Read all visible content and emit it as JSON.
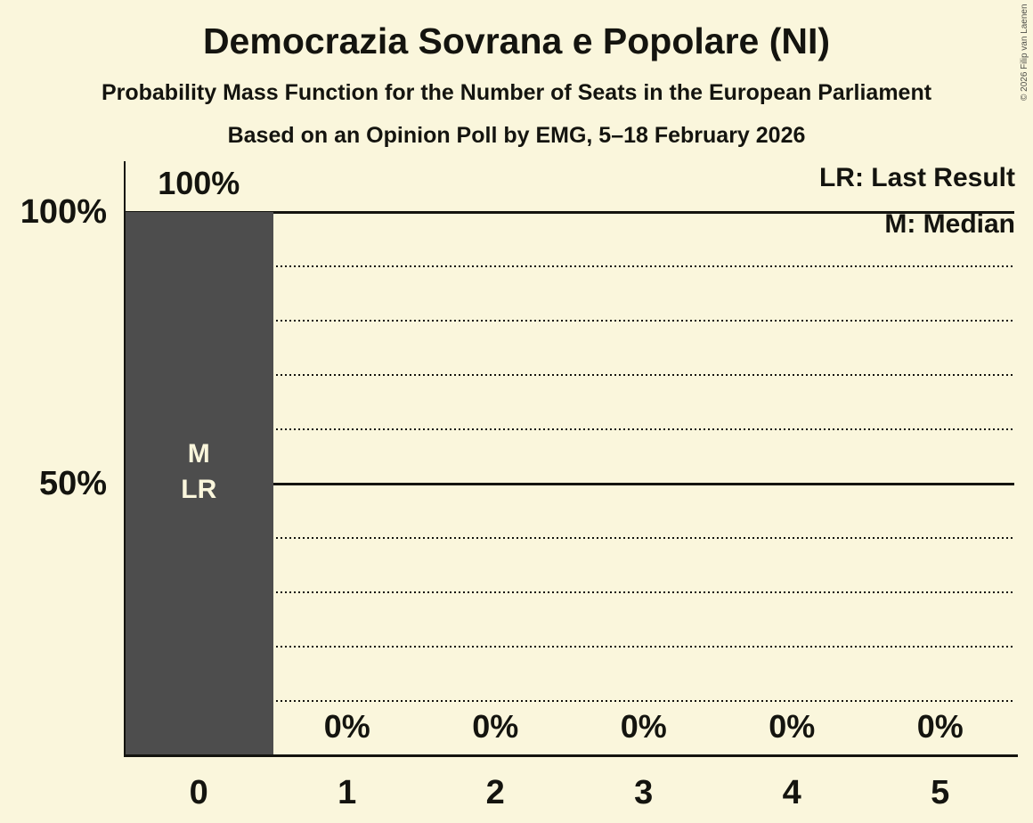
{
  "chart_data": {
    "type": "bar",
    "title": "Democrazia Sovrana e Popolare (NI)",
    "subtitle": "Probability Mass Function for the Number of Seats in the European Parliament",
    "source": "Based on an Opinion Poll by EMG, 5–18 February 2026",
    "categories": [
      "0",
      "1",
      "2",
      "3",
      "4",
      "5"
    ],
    "values": [
      100,
      0,
      0,
      0,
      0,
      0
    ],
    "value_labels": [
      "100%",
      "0%",
      "0%",
      "0%",
      "0%",
      "0%"
    ],
    "ylim": [
      0,
      100
    ],
    "y_ticks": [
      {
        "label": "100%",
        "value": 100
      },
      {
        "label": "50%",
        "value": 50
      }
    ],
    "solid_gridlines_at": [
      100,
      50
    ],
    "dotted_gridlines_at": [
      90,
      80,
      70,
      60,
      40,
      30,
      20,
      10
    ],
    "grid": "horizontal",
    "legend_position": "top-right",
    "legend": [
      {
        "label": "LR: Last Result"
      },
      {
        "label": "M: Median"
      }
    ],
    "bar_annotations": {
      "median_marker": "M",
      "last_result_marker": "LR",
      "annotated_category": "0"
    }
  },
  "colors": {
    "background": "#FAF6DC",
    "bar": "#4D4D4D",
    "ink": "#14140F",
    "bar_label_text": "#FAF6DC"
  },
  "copyright": "© 2026 Filip van Laenen"
}
